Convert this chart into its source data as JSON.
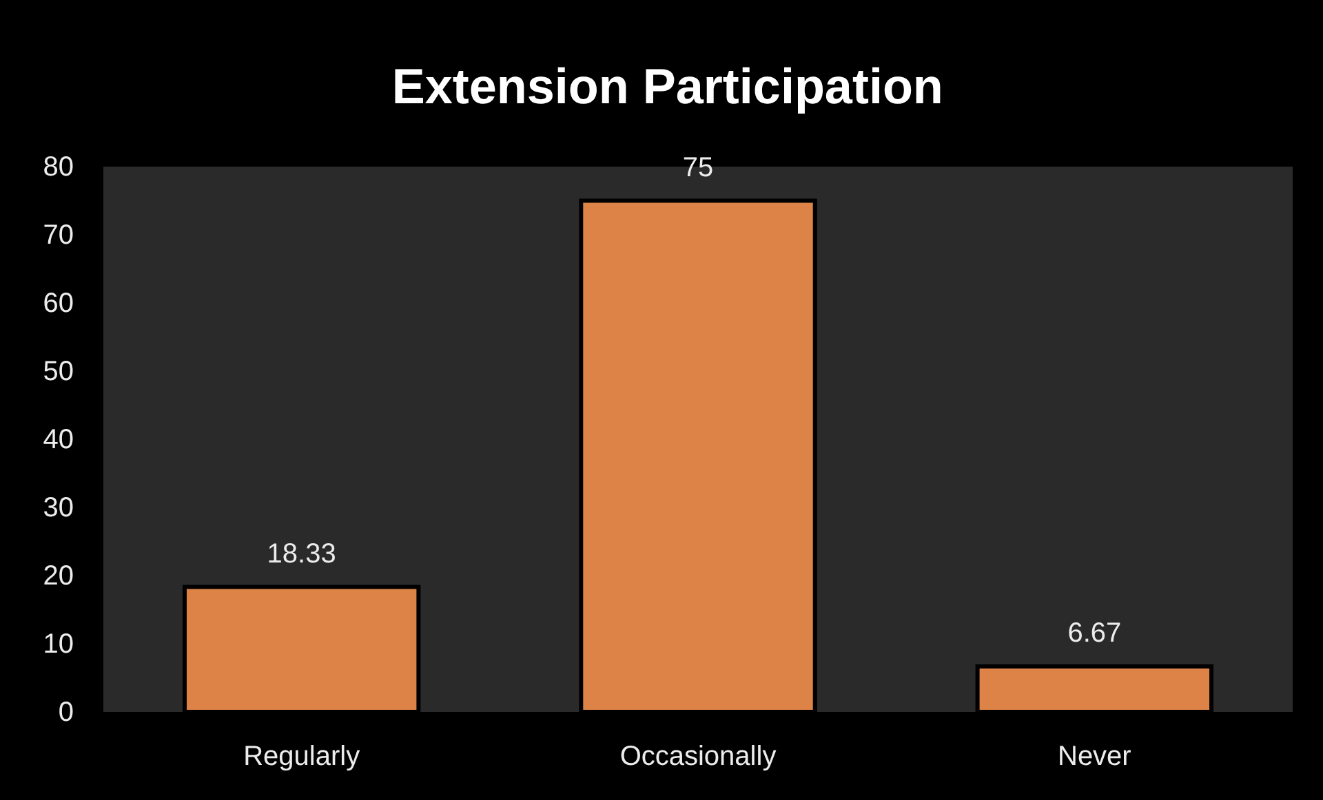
{
  "chart_data": {
    "type": "bar",
    "title": "Extension Participation",
    "categories": [
      "Regularly",
      "Occasionally",
      "Never"
    ],
    "values": [
      18.33,
      75,
      6.67
    ],
    "color": "#dd8348",
    "ylim": [
      0,
      80
    ],
    "yticks": [
      0,
      10,
      20,
      30,
      40,
      50,
      60,
      70,
      80
    ],
    "data_labels": true,
    "grid": false
  }
}
